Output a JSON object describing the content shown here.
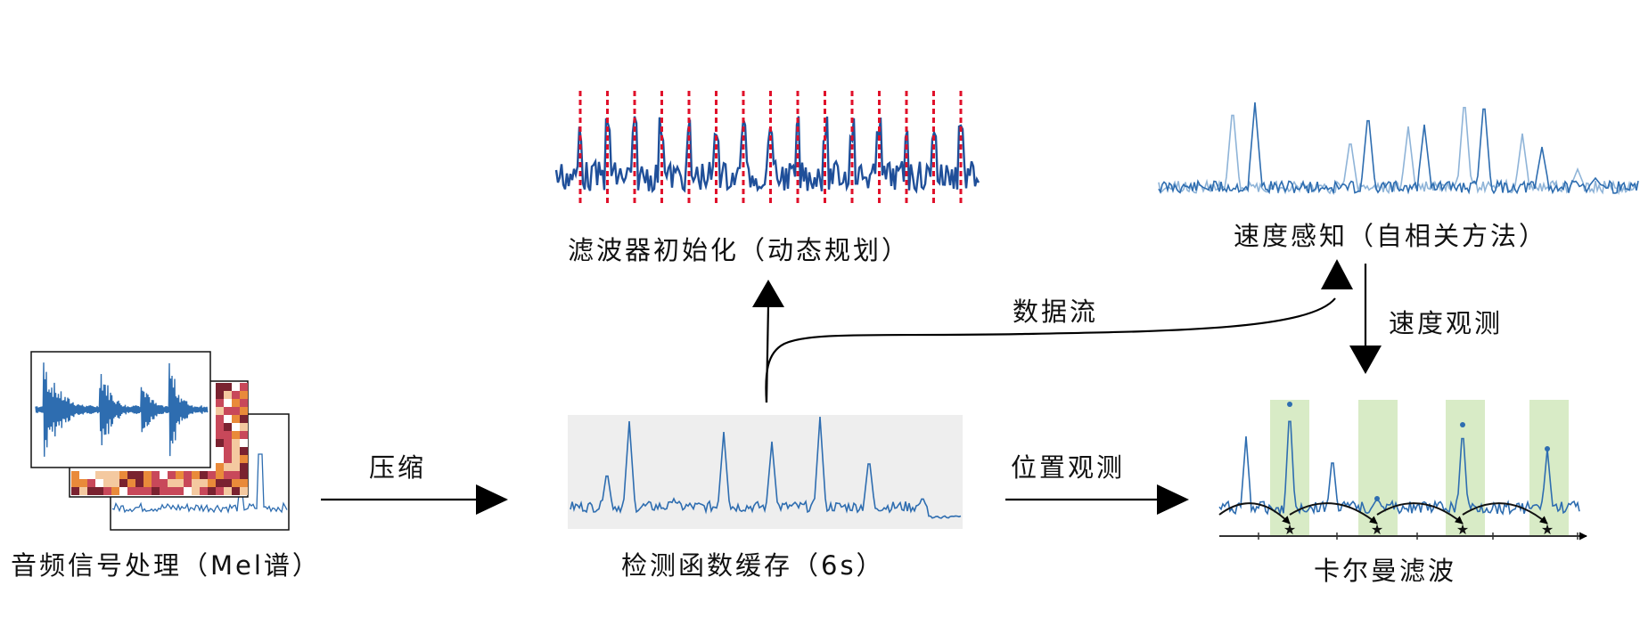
{
  "labels": {
    "audio": "音频信号处理（Mel谱）",
    "compress": "压缩",
    "buffer": "检测函数缓存（6s）",
    "position_obs": "位置观测",
    "kalman": "卡尔曼滤波",
    "init": "滤波器初始化（动态规划）",
    "data_flow": "数据流",
    "tempo": "速度感知（自相关方法）",
    "tempo_obs": "速度观测"
  },
  "colors": {
    "signal": "#2e6db0",
    "signal_dark": "#1f4f99",
    "signal_light": "#8fb4d8",
    "beat_marker": "#e0102a",
    "highlight": "#d8ebc6",
    "buffer_bg": "#eeeeee",
    "heat_dark": "#7a2230",
    "heat_mid": "#c8485a",
    "heat_orange": "#e98a3a"
  },
  "icons": {
    "arrow": "arrow-icon",
    "star": "star-icon"
  }
}
